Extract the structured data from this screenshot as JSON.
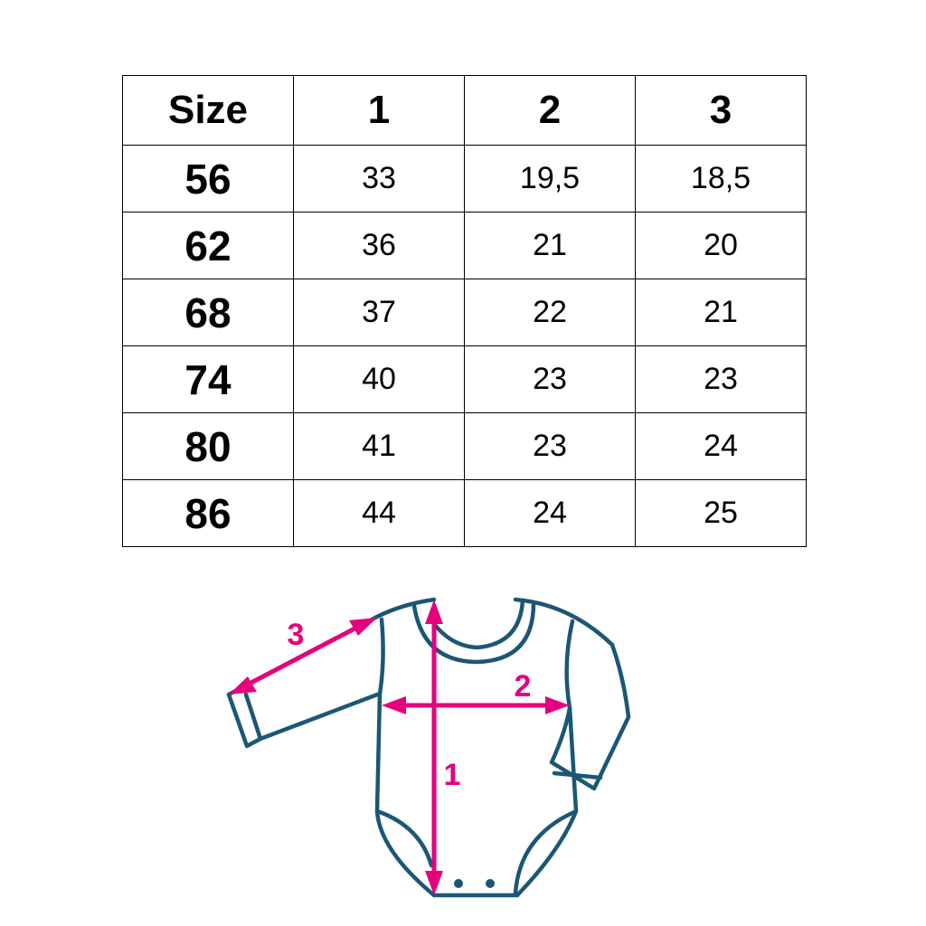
{
  "table": {
    "headers": [
      "Size",
      "1",
      "2",
      "3"
    ],
    "rows": [
      [
        "56",
        "33",
        "19,5",
        "18,5"
      ],
      [
        "62",
        "36",
        "21",
        "20"
      ],
      [
        "68",
        "37",
        "22",
        "21"
      ],
      [
        "74",
        "40",
        "23",
        "23"
      ],
      [
        "80",
        "41",
        "23",
        "24"
      ],
      [
        "86",
        "44",
        "24",
        "25"
      ]
    ]
  },
  "diagram": {
    "garment": "baby-bodysuit-long-sleeve",
    "labels": [
      "1",
      "2",
      "3"
    ],
    "outline_color": "#1b5774",
    "arrow_color": "#e5007e"
  }
}
